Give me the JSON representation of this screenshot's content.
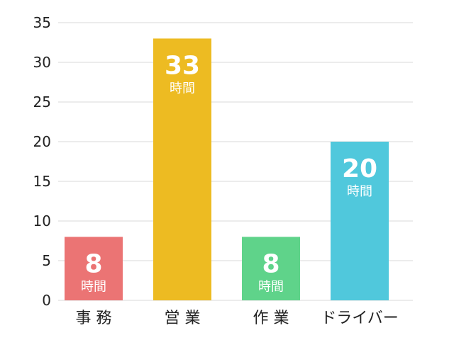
{
  "chart_data": {
    "type": "bar",
    "categories": [
      "事 務",
      "営 業",
      "作 業",
      "ドライバー"
    ],
    "values": [
      8,
      33,
      8,
      20
    ],
    "value_unit": "時間",
    "colors": [
      "#EB7474",
      "#EDBB22",
      "#5FD38A",
      "#50C8DC"
    ],
    "ylim": [
      0,
      35
    ],
    "yticks": [
      0,
      5,
      10,
      15,
      20,
      25,
      30,
      35
    ],
    "grid": true,
    "xlabel": "",
    "ylabel": "",
    "title": ""
  }
}
